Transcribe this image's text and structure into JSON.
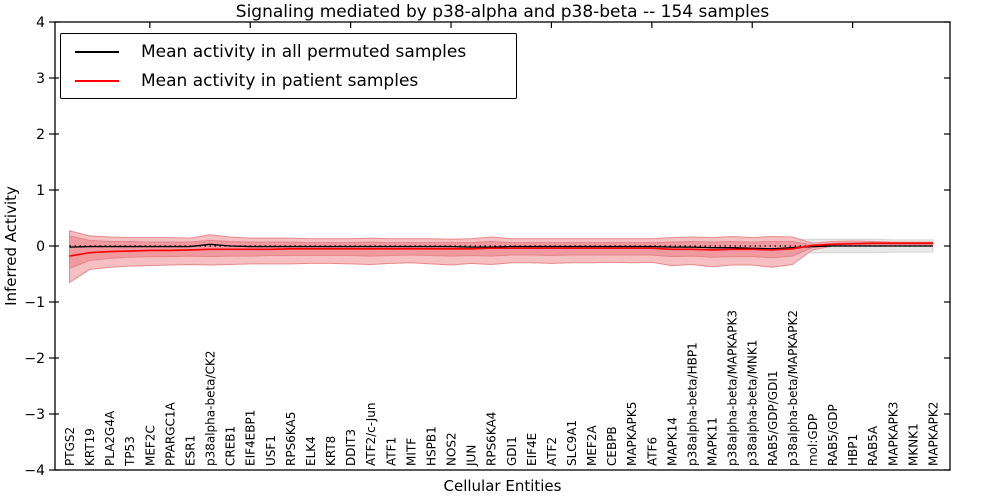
{
  "chart_data": {
    "type": "line",
    "title": "Signaling mediated by p38-alpha and p38-beta -- 154 samples",
    "xlabel": "Cellular Entities",
    "ylabel": "Inferred Activity",
    "ylim": [
      -4,
      4
    ],
    "yticks": [
      4,
      3,
      2,
      1,
      0,
      -1,
      -2,
      -3,
      -4
    ],
    "ytick_labels": [
      "4",
      "3",
      "2",
      "1",
      "0",
      "−1",
      "−2",
      "−3",
      "−4"
    ],
    "grid": false,
    "legend_position": "upper left",
    "categories": [
      "PTGS2",
      "KRT19",
      "PLA2G4A",
      "TP53",
      "MEF2C",
      "PPARGC1A",
      "ESR1",
      "p38alpha-beta/CK2",
      "CREB1",
      "EIF4EBP1",
      "USF1",
      "RPS6KA5",
      "ELK4",
      "KRT8",
      "DDIT3",
      "ATF2/c-Jun",
      "ATF1",
      "MITF",
      "HSPB1",
      "NOS2",
      "JUN",
      "RPS6KA4",
      "GDI1",
      "EIF4E",
      "ATF2",
      "SLC9A1",
      "MEF2A",
      "CEBPB",
      "MAPKAPK5",
      "ATF6",
      "MAPK14",
      "p38alpha-beta/HBP1",
      "MAPK11",
      "p38alpha-beta/MAPKAPK3",
      "p38alpha-beta/MNK1",
      "RAB5/GDP/GDI1",
      "p38alpha-beta/MAPKAPK2",
      "mol:GDP",
      "RAB5/GDP",
      "HBP1",
      "RAB5A",
      "MAPKAPK3",
      "MKNK1",
      "MAPKAPK2"
    ],
    "series": [
      {
        "name": "Mean activity in all permuted samples",
        "color": "#000000",
        "linestyle": "solid",
        "values": [
          -0.02,
          -0.01,
          -0.01,
          -0.01,
          -0.01,
          -0.01,
          -0.01,
          0.03,
          0.0,
          -0.01,
          -0.01,
          -0.01,
          -0.01,
          -0.01,
          -0.01,
          -0.01,
          -0.01,
          -0.01,
          -0.01,
          -0.01,
          -0.02,
          -0.02,
          -0.01,
          -0.01,
          -0.01,
          -0.01,
          -0.01,
          -0.01,
          -0.01,
          -0.01,
          -0.02,
          -0.02,
          -0.03,
          -0.03,
          -0.04,
          -0.05,
          -0.03,
          -0.01,
          0.0,
          0.0,
          0.0,
          0.0,
          0.0,
          0.0
        ]
      },
      {
        "name": "Mean activity in patient samples",
        "color": "#ff0000",
        "linestyle": "solid",
        "values": [
          -0.18,
          -0.12,
          -0.1,
          -0.09,
          -0.08,
          -0.08,
          -0.07,
          -0.06,
          -0.06,
          -0.06,
          -0.06,
          -0.05,
          -0.05,
          -0.05,
          -0.05,
          -0.05,
          -0.05,
          -0.05,
          -0.05,
          -0.05,
          -0.05,
          -0.04,
          -0.04,
          -0.04,
          -0.04,
          -0.04,
          -0.04,
          -0.04,
          -0.04,
          -0.04,
          -0.06,
          -0.06,
          -0.07,
          -0.06,
          -0.06,
          -0.07,
          -0.05,
          0.01,
          0.03,
          0.04,
          0.05,
          0.05,
          0.05,
          0.05
        ]
      }
    ],
    "reference_line": {
      "value": 0,
      "color": "#000000",
      "linestyle": "dotted"
    },
    "bands": [
      {
        "name": "permuted-samples-range",
        "fill": "#e8e8e8",
        "edge": "#d6d6d6",
        "upper": [
          0.13,
          0.11,
          0.1,
          0.1,
          0.1,
          0.1,
          0.1,
          0.11,
          0.1,
          0.1,
          0.1,
          0.1,
          0.1,
          0.1,
          0.1,
          0.1,
          0.1,
          0.1,
          0.1,
          0.1,
          0.1,
          0.11,
          0.1,
          0.1,
          0.1,
          0.1,
          0.1,
          0.1,
          0.1,
          0.1,
          0.11,
          0.11,
          0.11,
          0.12,
          0.11,
          0.12,
          0.12,
          0.12,
          0.12,
          0.12,
          0.12,
          0.11,
          0.11,
          0.11
        ],
        "lower": [
          -0.13,
          -0.11,
          -0.1,
          -0.1,
          -0.1,
          -0.1,
          -0.1,
          -0.11,
          -0.1,
          -0.1,
          -0.1,
          -0.1,
          -0.1,
          -0.1,
          -0.1,
          -0.1,
          -0.1,
          -0.1,
          -0.1,
          -0.1,
          -0.1,
          -0.11,
          -0.1,
          -0.1,
          -0.1,
          -0.1,
          -0.1,
          -0.1,
          -0.1,
          -0.1,
          -0.11,
          -0.11,
          -0.11,
          -0.12,
          -0.11,
          -0.12,
          -0.12,
          -0.12,
          -0.12,
          -0.12,
          -0.12,
          -0.11,
          -0.11,
          -0.11
        ]
      },
      {
        "name": "patient-samples-outer-band",
        "fill": "#f6c0c3",
        "edge": "#e8898d",
        "upper": [
          0.27,
          0.18,
          0.16,
          0.15,
          0.15,
          0.15,
          0.14,
          0.2,
          0.16,
          0.14,
          0.14,
          0.14,
          0.13,
          0.13,
          0.13,
          0.14,
          0.13,
          0.13,
          0.13,
          0.12,
          0.13,
          0.16,
          0.13,
          0.13,
          0.13,
          0.13,
          0.13,
          0.13,
          0.13,
          0.13,
          0.15,
          0.16,
          0.15,
          0.17,
          0.15,
          0.17,
          0.16,
          0.05,
          0.08,
          0.09,
          0.08,
          0.07,
          0.07,
          0.07
        ],
        "lower": [
          -0.65,
          -0.42,
          -0.38,
          -0.36,
          -0.35,
          -0.34,
          -0.33,
          -0.34,
          -0.33,
          -0.32,
          -0.32,
          -0.32,
          -0.31,
          -0.31,
          -0.32,
          -0.33,
          -0.31,
          -0.3,
          -0.32,
          -0.34,
          -0.31,
          -0.33,
          -0.3,
          -0.3,
          -0.31,
          -0.3,
          -0.3,
          -0.29,
          -0.3,
          -0.29,
          -0.35,
          -0.33,
          -0.37,
          -0.34,
          -0.34,
          -0.38,
          -0.33,
          -0.07,
          0.0,
          0.01,
          0.02,
          0.02,
          0.02,
          0.02
        ]
      },
      {
        "name": "patient-samples-inner-band",
        "fill": "#f09aa0",
        "edge": "#e5858b",
        "upper": [
          0.18,
          0.1,
          0.08,
          0.08,
          0.07,
          0.07,
          0.07,
          0.1,
          0.08,
          0.07,
          0.07,
          0.07,
          0.06,
          0.06,
          0.06,
          0.07,
          0.06,
          0.06,
          0.06,
          0.06,
          0.06,
          0.08,
          0.06,
          0.06,
          0.06,
          0.06,
          0.06,
          0.06,
          0.06,
          0.06,
          0.07,
          0.08,
          0.07,
          0.08,
          0.07,
          0.08,
          0.08,
          0.02,
          0.05,
          0.06,
          0.06,
          0.06,
          0.06,
          0.06
        ],
        "lower": [
          -0.4,
          -0.26,
          -0.22,
          -0.2,
          -0.19,
          -0.19,
          -0.18,
          -0.19,
          -0.18,
          -0.18,
          -0.17,
          -0.17,
          -0.17,
          -0.17,
          -0.17,
          -0.18,
          -0.17,
          -0.16,
          -0.17,
          -0.18,
          -0.17,
          -0.18,
          -0.16,
          -0.16,
          -0.17,
          -0.16,
          -0.16,
          -0.16,
          -0.16,
          -0.16,
          -0.19,
          -0.18,
          -0.2,
          -0.19,
          -0.19,
          -0.21,
          -0.18,
          -0.03,
          0.01,
          0.02,
          0.03,
          0.03,
          0.03,
          0.03
        ]
      }
    ]
  },
  "colors": {
    "axis": "#000000",
    "background": "#ffffff",
    "permuted_line": "#000000",
    "patient_line": "#ff0000"
  }
}
